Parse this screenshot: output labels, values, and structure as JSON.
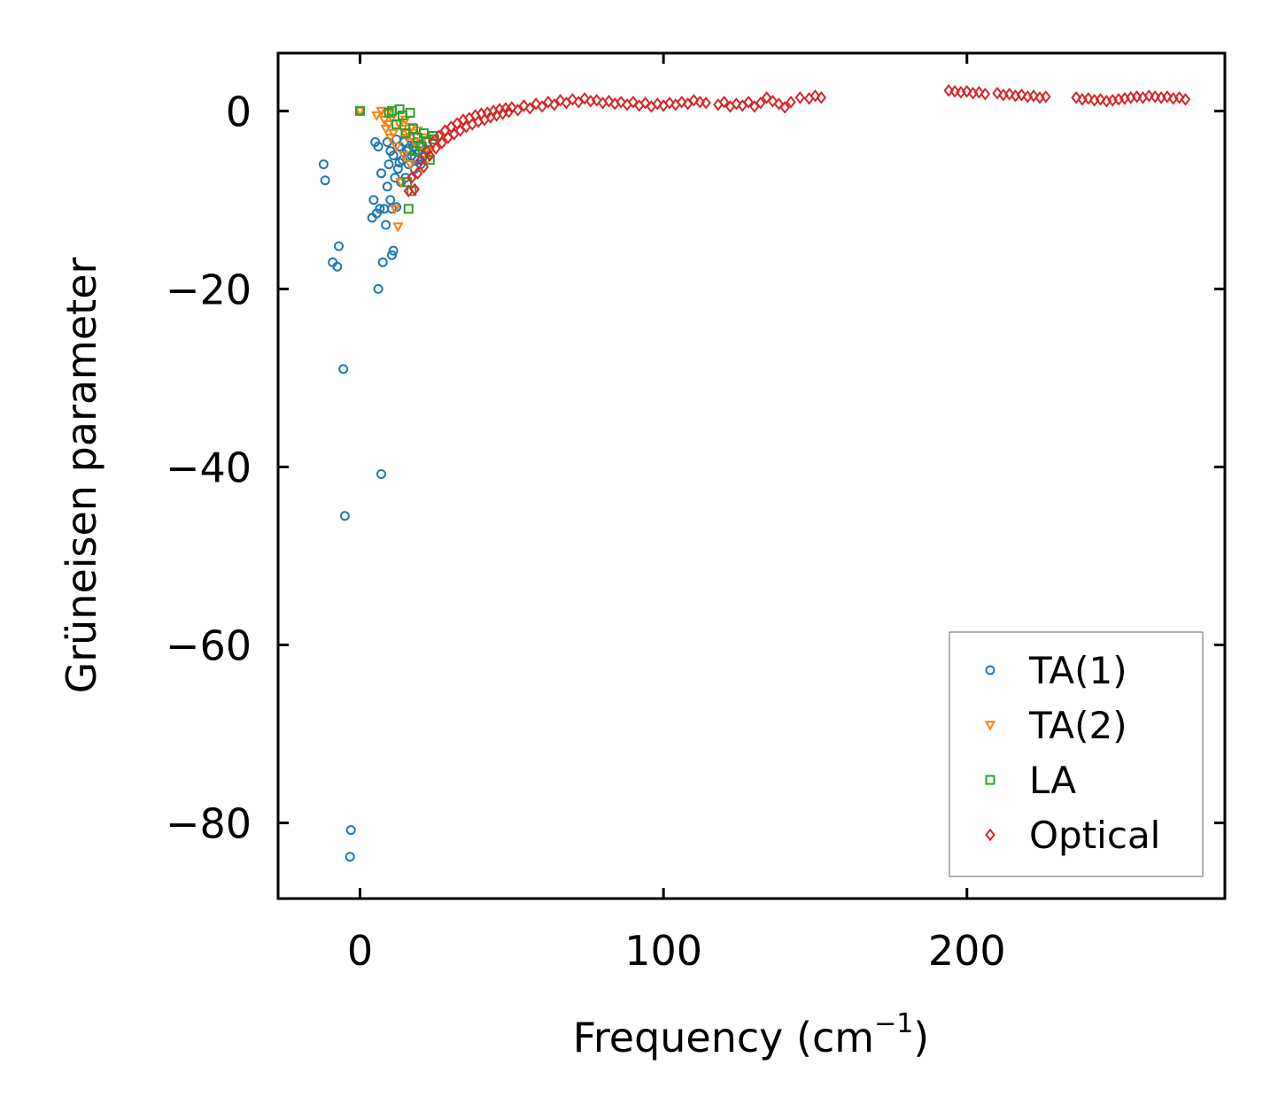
{
  "chart_data": {
    "type": "scatter",
    "xlabel_main": "Frequency (cm",
    "xlabel_sup": "−1",
    "xlabel_close": ")",
    "ylabel": "Grüneisen parameter",
    "xlim": [
      -27,
      285
    ],
    "ylim": [
      -88.5,
      6.5
    ],
    "xticks": [
      0,
      100,
      200
    ],
    "xtick_labels": [
      "0",
      "100",
      "200"
    ],
    "yticks": [
      0,
      -20,
      -40,
      -60,
      -80
    ],
    "ytick_labels": [
      "0",
      "−20",
      "−40",
      "−60",
      "−80"
    ],
    "legend_position": "lower-right",
    "series": [
      {
        "name": "TA(1)",
        "marker": "circle",
        "color": "#1f77b4",
        "points": [
          [
            -12,
            -6
          ],
          [
            -11.5,
            -7.8
          ],
          [
            -9,
            -17
          ],
          [
            -7.5,
            -17.5
          ],
          [
            -7,
            -15.2
          ],
          [
            -5.5,
            -29
          ],
          [
            -5,
            -45.5
          ],
          [
            -3,
            -80.8
          ],
          [
            -3.3,
            -83.8
          ],
          [
            0,
            0
          ],
          [
            4,
            -12
          ],
          [
            4.5,
            -10
          ],
          [
            5,
            -3.5
          ],
          [
            5.5,
            -11.5
          ],
          [
            6,
            -20
          ],
          [
            6,
            -4
          ],
          [
            6.5,
            -11
          ],
          [
            7,
            -7
          ],
          [
            7,
            -40.8
          ],
          [
            7.5,
            -17
          ],
          [
            8,
            -11
          ],
          [
            8.5,
            -12.8
          ],
          [
            9,
            -8.5
          ],
          [
            9,
            -3.5
          ],
          [
            9.5,
            -6
          ],
          [
            10,
            -4.5
          ],
          [
            10,
            -10
          ],
          [
            10.5,
            -16.2
          ],
          [
            10.5,
            -11
          ],
          [
            11,
            -15.7
          ],
          [
            11,
            -5
          ],
          [
            11.5,
            -7.5
          ],
          [
            12,
            -3.2
          ],
          [
            12,
            -10.8
          ],
          [
            12.5,
            -6.5
          ],
          [
            13,
            -4
          ],
          [
            13.5,
            -8
          ],
          [
            14,
            -5.5
          ],
          [
            14.5,
            -3.5
          ],
          [
            15,
            -7.5
          ],
          [
            15.5,
            -4.5
          ],
          [
            16,
            -6
          ],
          [
            16.5,
            -3
          ],
          [
            17,
            -5
          ],
          [
            17.5,
            -4
          ],
          [
            18,
            -6.5
          ],
          [
            18.5,
            -3.5
          ],
          [
            19,
            -5.5
          ],
          [
            19.5,
            -4.5
          ],
          [
            20,
            -6
          ],
          [
            20.5,
            -3.8
          ],
          [
            21,
            -5
          ],
          [
            13,
            -5.8
          ],
          [
            16,
            -4.2
          ],
          [
            18,
            -5.2
          ]
        ]
      },
      {
        "name": "TA(2)",
        "marker": "triangle-down",
        "color": "#ff7f0e",
        "points": [
          [
            0,
            0
          ],
          [
            5.5,
            -0.5
          ],
          [
            7,
            0
          ],
          [
            8,
            -1
          ],
          [
            8.5,
            -2
          ],
          [
            9,
            -0.3
          ],
          [
            9.5,
            -1.5
          ],
          [
            10,
            -3
          ],
          [
            10.5,
            -0.8
          ],
          [
            11,
            -2.5
          ],
          [
            11.5,
            -11
          ],
          [
            12,
            -4
          ],
          [
            12.5,
            -13
          ],
          [
            13,
            -1.5
          ],
          [
            13.5,
            -8
          ],
          [
            14,
            -2
          ],
          [
            14.5,
            -5
          ],
          [
            15,
            -1
          ],
          [
            15.5,
            -3
          ],
          [
            16,
            -2.5
          ],
          [
            16.5,
            -6
          ],
          [
            17,
            -1.8
          ],
          [
            18,
            -3.5
          ],
          [
            19,
            -2.2
          ],
          [
            20,
            -4
          ],
          [
            21,
            -3
          ],
          [
            22,
            -5.5
          ],
          [
            23,
            -4.5
          ]
        ]
      },
      {
        "name": "LA",
        "marker": "square",
        "color": "#2ca02c",
        "points": [
          [
            0,
            0
          ],
          [
            9.5,
            -0.2
          ],
          [
            10.5,
            0
          ],
          [
            12,
            -1.5
          ],
          [
            13,
            0.2
          ],
          [
            14,
            -0.5
          ],
          [
            15,
            -2.5
          ],
          [
            15.5,
            -8
          ],
          [
            16,
            -11
          ],
          [
            16.5,
            -0.2
          ],
          [
            17,
            -9
          ],
          [
            17.5,
            -2
          ],
          [
            18,
            -4.5
          ],
          [
            19,
            -3
          ],
          [
            20,
            -4
          ],
          [
            21,
            -2.5
          ],
          [
            22,
            -3.5
          ],
          [
            23,
            -5.5
          ],
          [
            24,
            -2.8
          ],
          [
            24.5,
            -3.2
          ]
        ]
      },
      {
        "name": "Optical",
        "marker": "diamond",
        "color": "#d62728",
        "points": [
          [
            16,
            -9
          ],
          [
            17,
            -7.5
          ],
          [
            18,
            -8.8
          ],
          [
            19,
            -7
          ],
          [
            20,
            -5.5
          ],
          [
            21,
            -6.3
          ],
          [
            22,
            -4.5
          ],
          [
            23,
            -5
          ],
          [
            24,
            -3.5
          ],
          [
            25,
            -4.2
          ],
          [
            26,
            -2.8
          ],
          [
            27,
            -3.6
          ],
          [
            28,
            -2.2
          ],
          [
            29,
            -3
          ],
          [
            30,
            -1.8
          ],
          [
            31,
            -2.6
          ],
          [
            32,
            -1.4
          ],
          [
            33,
            -2.2
          ],
          [
            34,
            -1
          ],
          [
            35,
            -1.8
          ],
          [
            36,
            -0.8
          ],
          [
            37,
            -1.5
          ],
          [
            38,
            -0.5
          ],
          [
            39,
            -1.2
          ],
          [
            40,
            -0.3
          ],
          [
            41,
            -1
          ],
          [
            42,
            -0.2
          ],
          [
            43,
            -0.7
          ],
          [
            44,
            0
          ],
          [
            45,
            -0.5
          ],
          [
            46,
            0.2
          ],
          [
            47,
            -0.3
          ],
          [
            48,
            0.3
          ],
          [
            49,
            -0.1
          ],
          [
            50,
            0.4
          ],
          [
            52,
            0.1
          ],
          [
            54,
            0.6
          ],
          [
            56,
            0.3
          ],
          [
            58,
            0.8
          ],
          [
            60,
            0.5
          ],
          [
            62,
            1
          ],
          [
            64,
            0.7
          ],
          [
            66,
            1.2
          ],
          [
            68,
            0.9
          ],
          [
            70,
            1.3
          ],
          [
            72,
            1
          ],
          [
            74,
            1.4
          ],
          [
            76,
            1.1
          ],
          [
            78,
            1.2
          ],
          [
            80,
            0.9
          ],
          [
            82,
            1.1
          ],
          [
            84,
            0.8
          ],
          [
            86,
            1
          ],
          [
            88,
            0.7
          ],
          [
            90,
            1
          ],
          [
            92,
            0.6
          ],
          [
            94,
            0.9
          ],
          [
            96,
            0.5
          ],
          [
            98,
            0.8
          ],
          [
            100,
            0.6
          ],
          [
            102,
            0.9
          ],
          [
            104,
            0.7
          ],
          [
            106,
            1
          ],
          [
            108,
            0.8
          ],
          [
            110,
            1.2
          ],
          [
            112,
            1
          ],
          [
            114,
            0.9
          ],
          [
            118,
            0.7
          ],
          [
            120,
            1
          ],
          [
            122,
            0.5
          ],
          [
            124,
            0.8
          ],
          [
            126,
            0.6
          ],
          [
            128,
            1
          ],
          [
            130,
            0.5
          ],
          [
            132,
            0.9
          ],
          [
            134,
            1.5
          ],
          [
            136,
            1.1
          ],
          [
            138,
            0.8
          ],
          [
            140,
            0.4
          ],
          [
            142,
            1
          ],
          [
            145,
            1.5
          ],
          [
            148,
            1.4
          ],
          [
            150,
            1.7
          ],
          [
            152,
            1.5
          ],
          [
            194,
            2.3
          ],
          [
            196,
            2.2
          ],
          [
            198,
            2.1
          ],
          [
            200,
            2.2
          ],
          [
            202,
            2
          ],
          [
            204,
            2.1
          ],
          [
            206,
            1.9
          ],
          [
            210,
            2
          ],
          [
            212,
            1.8
          ],
          [
            214,
            1.9
          ],
          [
            216,
            1.7
          ],
          [
            218,
            1.8
          ],
          [
            220,
            1.6
          ],
          [
            222,
            1.7
          ],
          [
            224,
            1.5
          ],
          [
            226,
            1.6
          ],
          [
            236,
            1.5
          ],
          [
            238,
            1.3
          ],
          [
            240,
            1.4
          ],
          [
            242,
            1.2
          ],
          [
            244,
            1.3
          ],
          [
            246,
            1.1
          ],
          [
            248,
            1.2
          ],
          [
            250,
            1.3
          ],
          [
            252,
            1.4
          ],
          [
            254,
            1.5
          ],
          [
            256,
            1.6
          ],
          [
            258,
            1.5
          ],
          [
            260,
            1.7
          ],
          [
            262,
            1.6
          ],
          [
            264,
            1.5
          ],
          [
            266,
            1.6
          ],
          [
            268,
            1.4
          ],
          [
            270,
            1.5
          ],
          [
            272,
            1.3
          ]
        ]
      }
    ]
  }
}
